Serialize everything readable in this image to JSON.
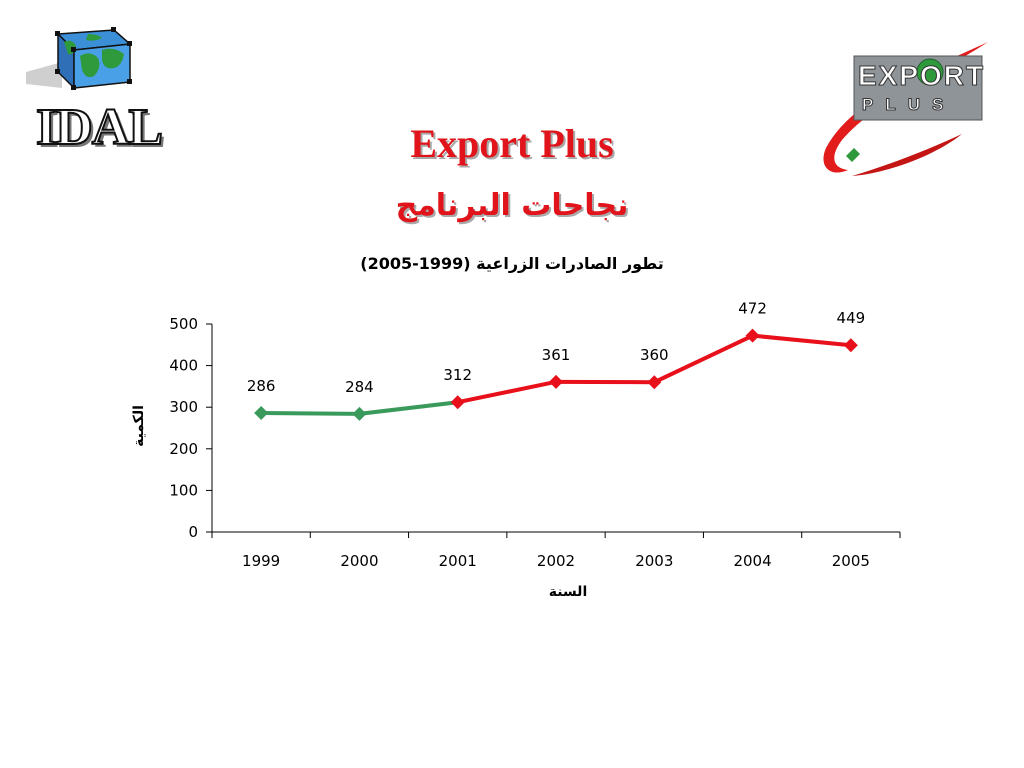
{
  "header": {
    "left_logo_text": "IDAL",
    "right_logo_line1": "EXPORT",
    "right_logo_line2": "PLUS",
    "title": "Export Plus",
    "subtitle": "نجاحات البرنامج"
  },
  "colors": {
    "title_red": "#e0141a",
    "series_green": "#3a9a5c",
    "series_red": "#e8101a"
  },
  "chart_data": {
    "type": "line",
    "title": "تطور الصادرات الزراعية (1999-2005)",
    "xlabel": "السنة",
    "ylabel": "الكمية",
    "categories": [
      "1999",
      "2000",
      "2001",
      "2002",
      "2003",
      "2004",
      "2005"
    ],
    "series": [
      {
        "values": [
          286,
          284,
          312,
          361,
          360,
          472,
          449
        ]
      }
    ],
    "data_labels": [
      "286",
      "284",
      "312",
      "361",
      "360",
      "472",
      "449"
    ],
    "segment_colors": [
      "green",
      "green",
      "red",
      "red",
      "red",
      "red"
    ],
    "marker_colors": [
      "green",
      "green",
      "red",
      "red",
      "red",
      "red",
      "red"
    ],
    "yticks": [
      "0",
      "100",
      "200",
      "300",
      "400",
      "500"
    ],
    "ylim": [
      0,
      500
    ],
    "grid": false,
    "legend": "none"
  }
}
